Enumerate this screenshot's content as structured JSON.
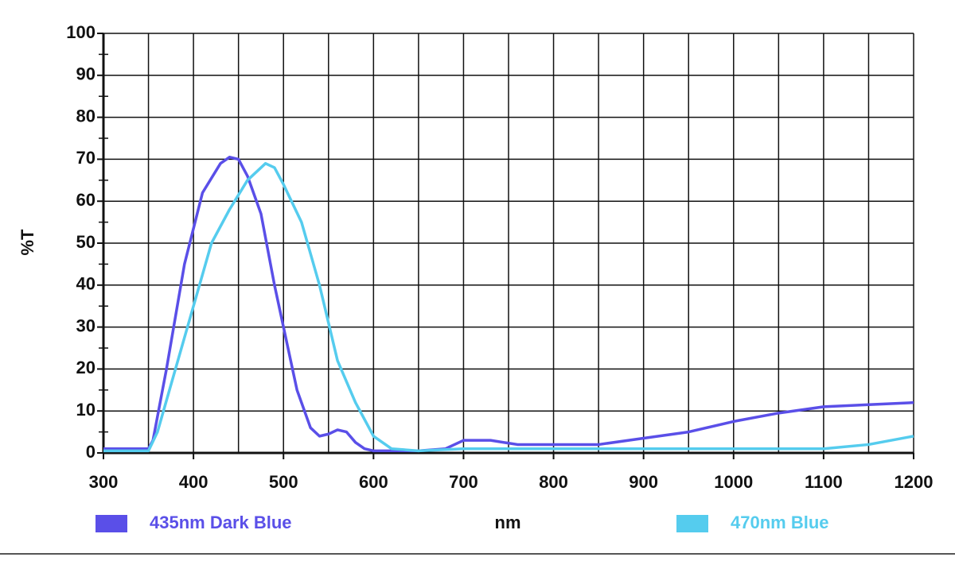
{
  "chart_data": {
    "type": "line",
    "xlabel": "nm",
    "ylabel": "%T",
    "xlim": [
      300,
      1200
    ],
    "ylim": [
      0,
      100
    ],
    "xticks": [
      300,
      400,
      500,
      600,
      700,
      800,
      900,
      1000,
      1100,
      1200
    ],
    "yticks": [
      0,
      10,
      20,
      30,
      40,
      50,
      60,
      70,
      80,
      90,
      100
    ],
    "xgrid": [
      300,
      350,
      400,
      450,
      500,
      550,
      600,
      650,
      700,
      750,
      800,
      850,
      900,
      950,
      1000,
      1050,
      1100,
      1150,
      1200
    ],
    "yminorticks": [
      5,
      15,
      25,
      35,
      45,
      55,
      65,
      75,
      85,
      95
    ],
    "grid": true,
    "legend": "bottom",
    "series": [
      {
        "name": "435nm Dark Blue",
        "color": "#5a4fe8",
        "x": [
          300,
          350,
          355,
          370,
          390,
          410,
          430,
          440,
          450,
          460,
          475,
          490,
          500,
          515,
          530,
          540,
          550,
          560,
          570,
          580,
          590,
          600,
          650,
          680,
          700,
          730,
          760,
          850,
          900,
          950,
          1000,
          1050,
          1100,
          1150,
          1200
        ],
        "values": [
          1,
          1,
          3,
          20,
          45,
          62,
          69,
          70.5,
          70,
          66,
          57,
          40,
          30,
          15,
          6,
          4,
          4.5,
          5.5,
          5,
          2.5,
          1,
          0.5,
          0.5,
          1,
          3,
          3,
          2,
          2,
          3.5,
          5,
          7.5,
          9.5,
          11,
          11.5,
          12
        ]
      },
      {
        "name": "470nm Blue",
        "color": "#55ccee",
        "x": [
          300,
          350,
          360,
          380,
          400,
          420,
          440,
          460,
          480,
          490,
          500,
          520,
          540,
          560,
          580,
          600,
          620,
          650,
          700,
          800,
          1000,
          1100,
          1150,
          1200
        ],
        "values": [
          0.5,
          0.5,
          5,
          20,
          35,
          50,
          58,
          65,
          69,
          68,
          64,
          55,
          40,
          22,
          12,
          4,
          1,
          0.5,
          1,
          1,
          1,
          1,
          2,
          4
        ]
      }
    ]
  }
}
